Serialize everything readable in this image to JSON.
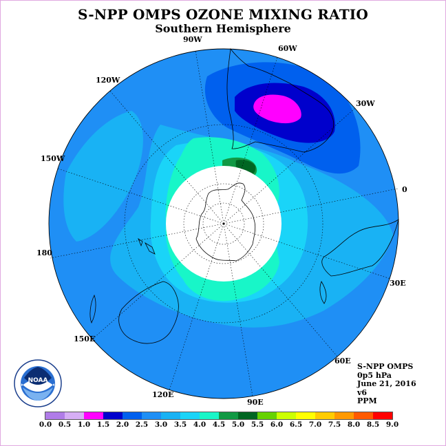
{
  "title": "S-NPP OMPS OZONE MIXING RATIO",
  "subtitle": "Southern Hemisphere",
  "longitude_labels": [
    "90W",
    "60W",
    "30W",
    "0",
    "30E",
    "60E",
    "90E",
    "120E",
    "150E",
    "180",
    "150W",
    "120W"
  ],
  "info": {
    "instrument": "S-NPP OMPS",
    "pressure_level": "0p5 hPa",
    "date": "June 21, 2016",
    "version": "v6",
    "units": "PPM"
  },
  "colorbar": {
    "ticks": [
      "0.0",
      "0.5",
      "1.0",
      "1.5",
      "2.0",
      "2.5",
      "3.0",
      "3.5",
      "4.0",
      "4.5",
      "5.0",
      "5.5",
      "6.0",
      "6.5",
      "7.0",
      "7.5",
      "8.0",
      "8.5",
      "9.0"
    ],
    "colors": [
      "#b07ce8",
      "#d6aef5",
      "#ff00ff",
      "#0000cc",
      "#0060ee",
      "#1f8ff5",
      "#19b2f4",
      "#1ad4f8",
      "#18f6c8",
      "#119944",
      "#006622",
      "#66d200",
      "#ccff00",
      "#ffff00",
      "#ffcc00",
      "#ff9900",
      "#ff5a00",
      "#ff0000",
      "#7f4a32"
    ]
  },
  "logo": {
    "text": "NOAA",
    "ring_text": "NATIONAL OCEANIC AND ATMOSPHERIC ADMINISTRATION · U.S. DEPARTMENT OF COMMERCE"
  },
  "map": {
    "projection": "south-polar-stereographic",
    "background_color": "#1f8ff5",
    "pole_mask_color": "#ffffff",
    "graticule": "dotted"
  }
}
